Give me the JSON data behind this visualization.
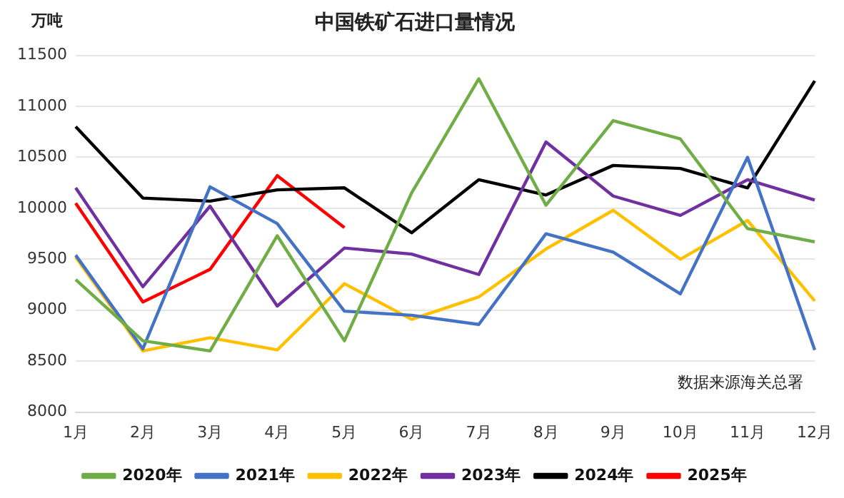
{
  "chart_data": {
    "type": "line",
    "title": "中国铁矿石进口量情况",
    "ylabel": "万吨",
    "categories": [
      "1月",
      "2月",
      "3月",
      "4月",
      "5月",
      "6月",
      "7月",
      "8月",
      "9月",
      "10月",
      "11月",
      "12月"
    ],
    "series": [
      {
        "name": "2020年",
        "color": "#70ad47",
        "values": [
          9300,
          8700,
          8600,
          9730,
          8700,
          10150,
          11270,
          10030,
          10860,
          10680,
          9800,
          9670
        ]
      },
      {
        "name": "2021年",
        "color": "#4472c4",
        "values": [
          9540,
          8620,
          10210,
          9850,
          8990,
          8950,
          8860,
          9750,
          9570,
          9160,
          10500,
          8610
        ]
      },
      {
        "name": "2022年",
        "color": "#ffc000",
        "values": [
          9520,
          8600,
          8730,
          8610,
          9260,
          8910,
          9130,
          9600,
          9980,
          9500,
          9880,
          9090
        ]
      },
      {
        "name": "2023年",
        "color": "#7030a0",
        "values": [
          10200,
          9230,
          10020,
          9040,
          9610,
          9550,
          9350,
          10650,
          10120,
          9930,
          10280,
          10080
        ]
      },
      {
        "name": "2024年",
        "color": "#000000",
        "values": [
          10800,
          10100,
          10070,
          10180,
          10200,
          9760,
          10280,
          10130,
          10420,
          10390,
          10200,
          11250
        ]
      },
      {
        "name": "2025年",
        "color": "#ff0000",
        "values": [
          10050,
          9080,
          9400,
          10320,
          9810,
          null,
          null,
          null,
          null,
          null,
          null,
          null
        ]
      }
    ],
    "ylim": [
      8000,
      11500
    ],
    "yticks": [
      8000,
      8500,
      9000,
      9500,
      10000,
      10500,
      11000,
      11500
    ],
    "grid": "y",
    "legend": "bottom",
    "marker": "none",
    "line_style": "solid",
    "annotations": [
      "数据来源海关总署"
    ]
  }
}
